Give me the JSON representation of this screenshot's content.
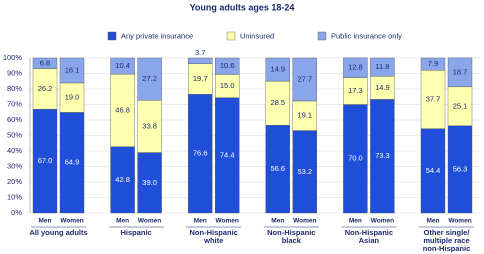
{
  "chart_data": {
    "type": "stacked_bar",
    "title": "Young adults ages 18-24",
    "categories": [
      "Men",
      "Women",
      "Men",
      "Women",
      "Men",
      "Women",
      "Men",
      "Women",
      "Men",
      "Women",
      "Men",
      "Women"
    ],
    "groups": [
      [
        "All young adults"
      ],
      [
        "Hispanic"
      ],
      [
        "Non-Hispanic",
        "white"
      ],
      [
        "Non-Hispanic",
        "black"
      ],
      [
        "Non-Hispanic",
        "Asian"
      ],
      [
        "Other single/",
        "multiple race",
        "non-Hispanic"
      ]
    ],
    "series": [
      {
        "name": "Any private insurance",
        "color": "#1f4fd8",
        "values": [
          67.0,
          64.9,
          42.8,
          39.0,
          76.6,
          74.4,
          56.6,
          53.2,
          70.0,
          73.3,
          54.4,
          56.3
        ],
        "value_labels": [
          "67.0",
          "64.9",
          "42.8",
          "39.0",
          "76.6",
          "74.4",
          "56.6",
          "53.2",
          "70.0",
          "73.3",
          "54.4",
          "56.3"
        ]
      },
      {
        "name": "Uninsured",
        "color": "#ffffb0",
        "values": [
          26.2,
          19.0,
          46.8,
          33.8,
          19.7,
          15.0,
          28.5,
          19.1,
          17.3,
          14.9,
          37.7,
          25.1
        ],
        "value_labels": [
          "26.2",
          "19.0",
          "46.8",
          "33.8",
          "19.7",
          "15.0",
          "28.5",
          "19.1",
          "17.3",
          "14.9",
          "37.7",
          "25.1"
        ]
      },
      {
        "name": "Public insurance only",
        "color": "#8aa6ea",
        "values": [
          6.8,
          16.1,
          10.4,
          27.2,
          3.7,
          10.6,
          14.9,
          27.7,
          12.8,
          11.8,
          7.9,
          18.7
        ],
        "value_labels": [
          "6.8",
          "16.1",
          "10.4",
          "27.2",
          "3.7",
          "10.6",
          "14.9",
          "27.7",
          "12.8",
          "11.8",
          "7.9",
          "18.7"
        ]
      }
    ],
    "ylim": [
      0,
      100
    ],
    "yticks": [
      {
        "value": 0,
        "label": "0%"
      },
      {
        "value": 10,
        "label": "10%"
      },
      {
        "value": 20,
        "label": "20%"
      },
      {
        "value": 30,
        "label": "30%"
      },
      {
        "value": 40,
        "label": "40%"
      },
      {
        "value": 50,
        "label": "50%"
      },
      {
        "value": 60,
        "label": "60%"
      },
      {
        "value": 70,
        "label": "70%"
      },
      {
        "value": 80,
        "label": "80%"
      },
      {
        "value": 90,
        "label": "90%"
      },
      {
        "value": 100,
        "label": "100%"
      }
    ],
    "grid": true
  }
}
